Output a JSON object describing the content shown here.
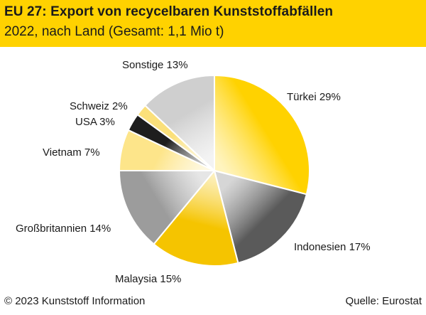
{
  "header": {
    "title": "EU 27: Export von recycelbaren Kunststoffabfällen",
    "subtitle": "2022, nach Land (Gesamt: 1,1 Mio t)",
    "background_color": "#ffd200"
  },
  "footer": {
    "copyright": "© 2023 Kunststoff Information",
    "source": "Quelle: Eurostat"
  },
  "chart_data": {
    "type": "pie",
    "title": "EU 27: Export von recycelbaren Kunststoffabfällen",
    "subtitle": "2022, nach Land (Gesamt: 1,1 Mio t)",
    "unit": "%",
    "slices": [
      {
        "label": "Türkei",
        "value": 29,
        "display": "Türkei 29%",
        "color": "#ffd200"
      },
      {
        "label": "Indonesien",
        "value": 17,
        "display": "Indonesien 17%",
        "color": "#5a5a5a"
      },
      {
        "label": "Malaysia",
        "value": 15,
        "display": "Malaysia 15%",
        "color": "#f5c400"
      },
      {
        "label": "Großbritannien",
        "value": 14,
        "display": "Großbritannien 14%",
        "color": "#9c9c9c"
      },
      {
        "label": "Vietnam",
        "value": 7,
        "display": "Vietnam 7%",
        "color": "#fde58a"
      },
      {
        "label": "USA",
        "value": 3,
        "display": "USA 3%",
        "color": "#1e1e1e"
      },
      {
        "label": "Schweiz",
        "value": 2,
        "display": "Schweiz 2%",
        "color": "#fbe07a"
      },
      {
        "label": "Sonstige",
        "value": 13,
        "display": "Sonstige 13%",
        "color": "#cfcfcf"
      }
    ]
  }
}
